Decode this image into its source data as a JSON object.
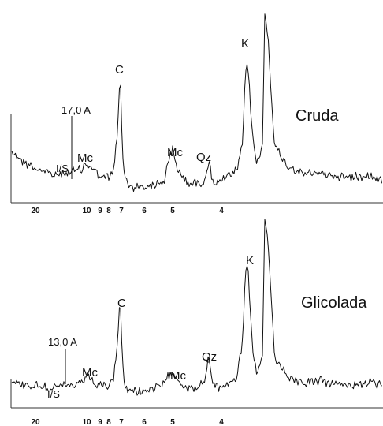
{
  "chart_data": [
    {
      "type": "line",
      "title": "Cruda",
      "x_tick_labels": [
        "20",
        "10",
        "9",
        "8",
        "7",
        "6",
        "5",
        "4"
      ],
      "marker": {
        "label": "17,0 A"
      },
      "peaks": [
        {
          "label": "I/S",
          "d": 15.0
        },
        {
          "label": "Mc",
          "d": 10.0
        },
        {
          "label": "C",
          "d": 7.1
        },
        {
          "label": "Mc",
          "d": 5.0
        },
        {
          "label": "Qz",
          "d": 4.26
        },
        {
          "label": "K",
          "d": 3.58
        }
      ],
      "series": [
        {
          "x": [
            24,
            22,
            20,
            18,
            17,
            16,
            15,
            14,
            13,
            12,
            11,
            10.5,
            10,
            9.5,
            9,
            8.5,
            8,
            7.6,
            7.3,
            7.15,
            7.1,
            7.05,
            6.9,
            6.7,
            6.4,
            6.0,
            5.6,
            5.3,
            5.1,
            5.0,
            4.9,
            4.7,
            4.5,
            4.35,
            4.26,
            4.18,
            4.05,
            3.9,
            3.75,
            3.65,
            3.6,
            3.58,
            3.56,
            3.5,
            3.45,
            3.37,
            3.34,
            3.32,
            3.28,
            3.2,
            3.1,
            3.0,
            2.9,
            2.8,
            2.7,
            2.6
          ],
          "y": [
            55,
            40,
            32,
            27,
            24,
            23,
            25,
            26,
            28,
            29,
            31,
            34,
            38,
            30,
            22,
            19,
            20,
            30,
            80,
            135,
            150,
            130,
            25,
            10,
            8,
            9,
            11,
            16,
            45,
            55,
            30,
            14,
            12,
            16,
            40,
            15,
            14,
            20,
            28,
            60,
            150,
            170,
            155,
            70,
            38,
            60,
            230,
            200,
            60,
            35,
            24,
            26,
            22,
            20,
            24,
            18
          ]
        }
      ]
    },
    {
      "type": "line",
      "title": "Glicolada",
      "x_tick_labels": [
        "20",
        "10",
        "9",
        "8",
        "7",
        "6",
        "5",
        "4"
      ],
      "marker": {
        "label": "13,0 A"
      },
      "peaks": [
        {
          "label": "I/S",
          "d": 15.0
        },
        {
          "label": "Mc",
          "d": 10.0
        },
        {
          "label": "C",
          "d": 7.1
        },
        {
          "label": "Mc",
          "d": 5.0
        },
        {
          "label": "Qz",
          "d": 4.26
        },
        {
          "label": "K",
          "d": 3.58
        }
      ],
      "series": [
        {
          "x": [
            24,
            22,
            20,
            18,
            17,
            16,
            15,
            14,
            13,
            12,
            11,
            10.5,
            10,
            9.5,
            9,
            8.5,
            8,
            7.6,
            7.3,
            7.15,
            7.1,
            7.05,
            6.9,
            6.7,
            6.4,
            6.0,
            5.6,
            5.3,
            5.1,
            5.0,
            4.9,
            4.7,
            4.5,
            4.35,
            4.26,
            4.18,
            4.05,
            3.9,
            3.75,
            3.65,
            3.6,
            3.58,
            3.56,
            3.5,
            3.45,
            3.37,
            3.34,
            3.32,
            3.28,
            3.2,
            3.1,
            3.0,
            2.9,
            2.8,
            2.7,
            2.6
          ],
          "y": [
            20,
            18,
            16,
            15,
            14,
            14,
            15,
            16,
            16,
            17,
            18,
            22,
            30,
            20,
            15,
            14,
            15,
            25,
            70,
            120,
            140,
            110,
            20,
            10,
            9,
            10,
            12,
            18,
            30,
            38,
            22,
            14,
            13,
            20,
            55,
            18,
            14,
            18,
            26,
            70,
            160,
            175,
            160,
            60,
            30,
            50,
            230,
            200,
            55,
            28,
            20,
            22,
            18,
            17,
            20,
            16
          ]
        }
      ]
    }
  ]
}
